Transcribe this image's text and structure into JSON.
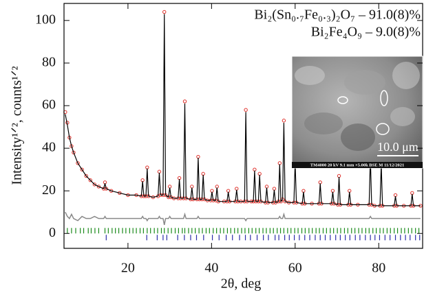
{
  "chart_data": {
    "type": "xrd",
    "annotations": [
      "Bi₂(Sn₀.₇Fe₀.₃)₂O₇ – 91.0(8)%",
      "Bi₂Fe₄O₉ – 9.0(8)%"
    ],
    "xlabel": "2θ, deg",
    "ylabel": "Intensity¹ᐟ², counts¹ᐟ²",
    "xlim": [
      4.7,
      90.5
    ],
    "ylim": [
      -7,
      108
    ],
    "xticks": [
      20,
      40,
      60,
      80
    ],
    "yticks": [
      0,
      20,
      40,
      60,
      80,
      100
    ],
    "x": [
      5,
      5.5,
      6,
      6.5,
      7,
      8,
      9,
      10,
      11,
      12,
      13,
      14.2,
      14.5,
      14.8,
      16,
      18,
      20,
      22,
      23.2,
      23.5,
      23.8,
      24.3,
      24.6,
      24.9,
      26,
      27.2,
      27.5,
      27.8,
      28.4,
      28.7,
      29,
      29.7,
      30,
      30.3,
      31,
      32,
      32.3,
      32.6,
      33.3,
      33.6,
      33.9,
      35,
      35.3,
      35.6,
      36.5,
      36.8,
      37.1,
      37.7,
      38,
      38.3,
      39,
      39.8,
      40.1,
      40.4,
      41,
      41.3,
      41.6,
      43,
      43.7,
      44,
      44.3,
      45.7,
      46,
      46.3,
      47,
      47.9,
      48.2,
      48.5,
      49.5,
      50,
      50.3,
      50.6,
      51.2,
      51.5,
      51.8,
      52.9,
      53.2,
      53.5,
      54.7,
      55,
      55.3,
      56,
      56.3,
      56.6,
      57,
      57.3,
      57.6,
      58.5,
      59.7,
      60,
      60.3,
      61.7,
      62,
      62.3,
      64,
      65.7,
      66,
      66.3,
      68.7,
      69,
      69.3,
      70.2,
      70.5,
      70.8,
      72.7,
      73,
      73.3,
      75,
      77.7,
      78,
      78.3,
      79,
      80.3,
      80.6,
      80.9,
      83.7,
      84,
      84.3,
      86,
      87.7,
      88,
      88.3,
      90
    ],
    "series": [
      {
        "style": "markers",
        "color": "#e0302a",
        "values": [
          57,
          52,
          45,
          41,
          38,
          33,
          30,
          27,
          25,
          23,
          22,
          21,
          24,
          21,
          20,
          19,
          18,
          18,
          17.5,
          25,
          17.5,
          17.5,
          31,
          17.5,
          17,
          17.5,
          29,
          18,
          18,
          104,
          18,
          17,
          22,
          17,
          16.5,
          16.5,
          26,
          16.5,
          16.5,
          62,
          16.5,
          16,
          22,
          16,
          16,
          36,
          16,
          16,
          28,
          16,
          15.5,
          15.5,
          20,
          15.5,
          15.5,
          22,
          15,
          15,
          15,
          20,
          15,
          15,
          21,
          15,
          15,
          15,
          58,
          15,
          15,
          15,
          30,
          15,
          15,
          28,
          15,
          14.5,
          22,
          14.5,
          14.5,
          21,
          14.5,
          15,
          33,
          15,
          16,
          53,
          15,
          14.5,
          14.5,
          34,
          14.5,
          14,
          20,
          14,
          14,
          14,
          24,
          14,
          14,
          20,
          14,
          13.5,
          27,
          13.5,
          13.5,
          20,
          13.5,
          13.5,
          13.5,
          37,
          13.5,
          13,
          13,
          33,
          13,
          13,
          18,
          13,
          13,
          13,
          19,
          13,
          13
        ]
      },
      {
        "style": "line",
        "color": "#000000",
        "values": [
          56,
          51,
          45,
          41,
          38,
          33,
          30,
          27,
          25,
          23,
          22,
          21,
          23.5,
          21,
          20,
          19,
          18,
          18,
          17.5,
          24.5,
          17.5,
          17.5,
          30.5,
          17.5,
          17,
          17.5,
          28.5,
          18,
          18,
          103,
          18,
          17,
          21.5,
          17,
          16.5,
          16.5,
          25.5,
          16.5,
          16.5,
          61,
          16.5,
          16,
          21.5,
          16,
          16,
          35.5,
          16,
          16,
          27.5,
          16,
          15.5,
          15.5,
          19.5,
          15.5,
          15.5,
          21.5,
          15,
          15,
          15,
          19.5,
          15,
          15,
          20.5,
          15,
          15,
          15,
          57,
          15,
          15,
          15,
          29.5,
          15,
          15,
          27.5,
          15,
          14.5,
          21.5,
          14.5,
          14.5,
          20.5,
          14.5,
          15,
          32.5,
          15,
          16,
          52,
          15,
          14.5,
          14.5,
          33.5,
          14.5,
          14,
          19.5,
          14,
          14,
          14,
          23.5,
          14,
          14,
          19.5,
          14,
          13.5,
          26.5,
          13.5,
          13.5,
          19.5,
          13.5,
          13.5,
          13.5,
          36,
          13.5,
          13,
          13,
          32.5,
          13,
          13,
          17.5,
          13,
          13,
          13,
          18.5,
          13,
          13
        ]
      },
      {
        "style": "line",
        "color": "#888888",
        "values": [
          10,
          8,
          7,
          9,
          7,
          6,
          8,
          7,
          7,
          8,
          7,
          7,
          8,
          7,
          7,
          7,
          7,
          7,
          7,
          8,
          7,
          7,
          6,
          7,
          7,
          7,
          8,
          7,
          7,
          4,
          7,
          7,
          8,
          7,
          7,
          7,
          7,
          7,
          7,
          9,
          7,
          7,
          7,
          7,
          7,
          8,
          7,
          7,
          7,
          7,
          7,
          7,
          7,
          7,
          7,
          7,
          7,
          7,
          7,
          7,
          7,
          7,
          7,
          7,
          7,
          7,
          6,
          7,
          7,
          7,
          7,
          7,
          7,
          7,
          7,
          7,
          7,
          7,
          7,
          7,
          7,
          7,
          8,
          7,
          7,
          9,
          7,
          7,
          7,
          7,
          7,
          7,
          7,
          7,
          7,
          7,
          7,
          7,
          7,
          7,
          7,
          7,
          7,
          7,
          7,
          7,
          7,
          7,
          7,
          8,
          7,
          7,
          7,
          7,
          7,
          7,
          7,
          7,
          7,
          7,
          7,
          7,
          7
        ]
      }
    ],
    "reflections": [
      {
        "color": "#1a8a1a",
        "positions": [
          5.5,
          6.5,
          7.5,
          8.6,
          9.4,
          10.5,
          11.2,
          12.1,
          13,
          14.5,
          15.3,
          16.2,
          17,
          17.8,
          18.7,
          19.5,
          20.4,
          21.2,
          22,
          22.9,
          23.7,
          24.6,
          25.4,
          26.3,
          27.1,
          28,
          28.7,
          29.6,
          30.4,
          31.3,
          32.1,
          33,
          33.6,
          34.5,
          35.3,
          36.1,
          37,
          37.8,
          38.7,
          39.5,
          40.4,
          41.2,
          42.1,
          42.9,
          43.8,
          44.6,
          45.5,
          46.3,
          47.2,
          48,
          48.9,
          49.7,
          50.6,
          51.4,
          52.3,
          53.1,
          54,
          54.8,
          55.7,
          56.5,
          57.3,
          58.2,
          59,
          59.9,
          60.7,
          61.6,
          62.4,
          63.3,
          64.1,
          65,
          65.8,
          66.7,
          67.5,
          68.4,
          69.2,
          70.1,
          70.9,
          71.8,
          72.6,
          73.5,
          74.3,
          75.2,
          76,
          76.9,
          77.7,
          78.6,
          79.4,
          80.3,
          81.1,
          82,
          82.8,
          83.7,
          84.5,
          85.4,
          86.2,
          87.1,
          87.9,
          88.8,
          89.6
        ]
      },
      {
        "color": "#2a2aa8",
        "positions": [
          14.8,
          24.5,
          27,
          28.4,
          29.3,
          31.9,
          33.5,
          35,
          36.4,
          38.1,
          40.2,
          41.8,
          43.5,
          45,
          46.7,
          48.1,
          49.3,
          50.9,
          52.4,
          53.6,
          55.2,
          56.1,
          57.5,
          58.6,
          59.8,
          61,
          62.3,
          63.5,
          64.8,
          66,
          67.2,
          68.4,
          69.7,
          70.8,
          72,
          73.1,
          74.4,
          75.5,
          76.8,
          78,
          79.1,
          80.2,
          81.5,
          82.7,
          84,
          85.2,
          86.4,
          87.5,
          88.8,
          89.8
        ]
      }
    ],
    "inset": {
      "scale_label": "10.0 μm",
      "caption": "TM4000 20 kV 9.1 mm ×5.00k BSE M 11/12/2021"
    }
  }
}
